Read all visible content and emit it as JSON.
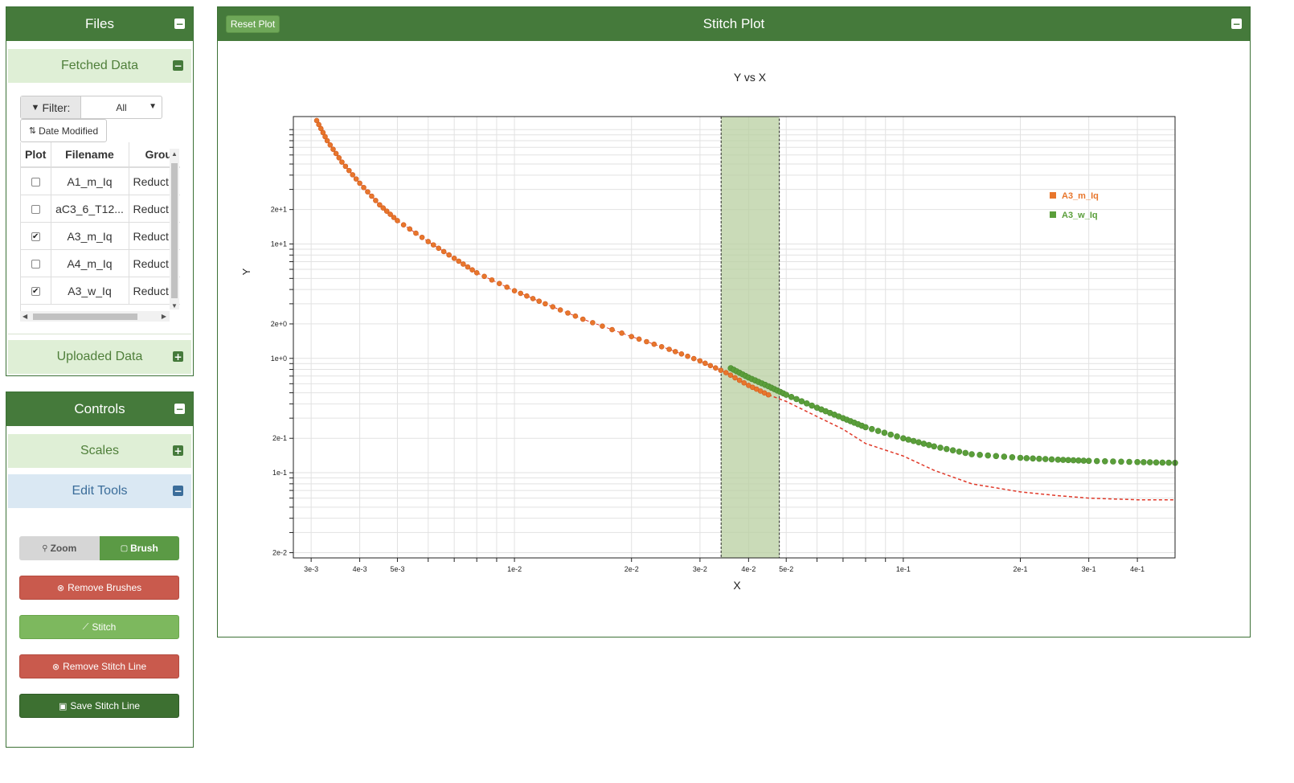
{
  "files_panel": {
    "title": "Files",
    "fetched": {
      "title": "Fetched Data",
      "filter_label": "Filter:",
      "filter_value": "All",
      "sort_label": "Date Modified",
      "columns": [
        "Plot",
        "Filename",
        "Grou"
      ],
      "rows": [
        {
          "checked": false,
          "filename": "A1_m_Iq",
          "group": "Reduct"
        },
        {
          "checked": false,
          "filename": "aC3_6_T12...",
          "group": "Reduct"
        },
        {
          "checked": true,
          "filename": "A3_m_Iq",
          "group": "Reduct"
        },
        {
          "checked": false,
          "filename": "A4_m_Iq",
          "group": "Reduct"
        },
        {
          "checked": true,
          "filename": "A3_w_Iq",
          "group": "Reduct"
        }
      ]
    },
    "uploaded": {
      "title": "Uploaded Data"
    }
  },
  "controls_panel": {
    "title": "Controls",
    "scales": {
      "title": "Scales"
    },
    "edit_tools": {
      "title": "Edit Tools",
      "zoom_label": "Zoom",
      "brush_label": "Brush",
      "remove_brushes_label": "Remove Brushes",
      "stitch_label": "Stitch",
      "remove_stitch_label": "Remove Stitch Line",
      "save_stitch_label": "Save Stitch Line"
    }
  },
  "plot_panel": {
    "title": "Stitch Plot",
    "reset_label": "Reset Plot"
  },
  "colors": {
    "header_green": "#457a3b",
    "series_orange": "#e8762c",
    "series_green": "#5a9e3a",
    "stitch_red": "#e03a2a",
    "brush_fill": "#b8cfa0"
  },
  "chart_data": {
    "type": "scatter",
    "title": "Y vs X",
    "xlabel": "X",
    "ylabel": "Y",
    "x_scale": "log",
    "y_scale": "log",
    "xlim": [
      0.0027,
      0.5
    ],
    "ylim": [
      0.018,
      130
    ],
    "grid": true,
    "legend_position": "top-right",
    "x_ticks": [
      {
        "v": 0.003,
        "label": "3e-3"
      },
      {
        "v": 0.004,
        "label": "4e-3"
      },
      {
        "v": 0.005,
        "label": "5e-3"
      },
      {
        "v": 0.01,
        "label": "1e-2"
      },
      {
        "v": 0.02,
        "label": "2e-2"
      },
      {
        "v": 0.03,
        "label": "3e-2"
      },
      {
        "v": 0.04,
        "label": "4e-2"
      },
      {
        "v": 0.05,
        "label": "5e-2"
      },
      {
        "v": 0.1,
        "label": "1e-1"
      },
      {
        "v": 0.2,
        "label": "2e-1"
      },
      {
        "v": 0.3,
        "label": "3e-1"
      },
      {
        "v": 0.4,
        "label": "4e-1"
      }
    ],
    "y_ticks": [
      {
        "v": 0.02,
        "label": "2e-2"
      },
      {
        "v": 0.1,
        "label": "1e-1"
      },
      {
        "v": 0.2,
        "label": "2e-1"
      },
      {
        "v": 1,
        "label": "1e+0"
      },
      {
        "v": 2,
        "label": "2e+0"
      },
      {
        "v": 10,
        "label": "1e+1"
      },
      {
        "v": 20,
        "label": "2e+1"
      }
    ],
    "brush_range": [
      0.034,
      0.048
    ],
    "series": [
      {
        "name": "A3_m_Iq",
        "points": [
          [
            0.0031,
            120
          ],
          [
            0.0033,
            80
          ],
          [
            0.0036,
            52
          ],
          [
            0.004,
            34
          ],
          [
            0.0045,
            22
          ],
          [
            0.005,
            16
          ],
          [
            0.006,
            10.5
          ],
          [
            0.007,
            7.5
          ],
          [
            0.008,
            5.6
          ],
          [
            0.01,
            3.9
          ],
          [
            0.012,
            3.0
          ],
          [
            0.015,
            2.2
          ],
          [
            0.02,
            1.55
          ],
          [
            0.025,
            1.2
          ],
          [
            0.03,
            0.95
          ],
          [
            0.035,
            0.75
          ],
          [
            0.04,
            0.58
          ],
          [
            0.045,
            0.48
          ]
        ]
      },
      {
        "name": "A3_w_Iq",
        "points": [
          [
            0.036,
            0.82
          ],
          [
            0.04,
            0.68
          ],
          [
            0.045,
            0.57
          ],
          [
            0.05,
            0.48
          ],
          [
            0.06,
            0.37
          ],
          [
            0.07,
            0.3
          ],
          [
            0.08,
            0.25
          ],
          [
            0.1,
            0.2
          ],
          [
            0.12,
            0.17
          ],
          [
            0.15,
            0.145
          ],
          [
            0.2,
            0.135
          ],
          [
            0.25,
            0.13
          ],
          [
            0.3,
            0.127
          ],
          [
            0.4,
            0.124
          ],
          [
            0.5,
            0.122
          ]
        ]
      }
    ],
    "stitch_line": [
      [
        0.045,
        0.48
      ],
      [
        0.05,
        0.42
      ],
      [
        0.06,
        0.31
      ],
      [
        0.07,
        0.24
      ],
      [
        0.08,
        0.18
      ],
      [
        0.1,
        0.14
      ],
      [
        0.12,
        0.105
      ],
      [
        0.15,
        0.08
      ],
      [
        0.2,
        0.068
      ],
      [
        0.25,
        0.063
      ],
      [
        0.3,
        0.06
      ],
      [
        0.4,
        0.058
      ],
      [
        0.5,
        0.058
      ]
    ]
  }
}
